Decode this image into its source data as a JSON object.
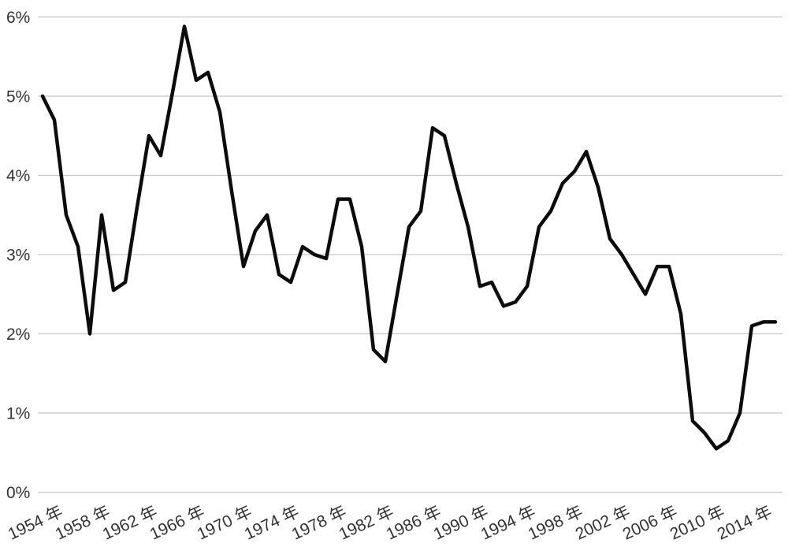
{
  "chart_data": {
    "type": "line",
    "title": "",
    "xlabel": "",
    "ylabel": "",
    "grid": true,
    "legend_position": "none",
    "ylim": [
      0,
      6
    ],
    "y_tick_labels": [
      "0%",
      "1%",
      "2%",
      "3%",
      "4%",
      "5%",
      "6%"
    ],
    "x_tick_years": [
      1954,
      1958,
      1962,
      1966,
      1970,
      1974,
      1978,
      1982,
      1986,
      1990,
      1994,
      1998,
      2002,
      2006,
      2010,
      2014
    ],
    "x_tick_labels": [
      "1954 年",
      "1958 年",
      "1962 年",
      "1966 年",
      "1970 年",
      "1974 年",
      "1978 年",
      "1982 年",
      "1986 年",
      "1990 年",
      "1994 年",
      "1998 年",
      "2002 年",
      "2006 年",
      "2010 年",
      "2014 年"
    ],
    "years": [
      1954,
      1955,
      1956,
      1957,
      1958,
      1959,
      1960,
      1961,
      1962,
      1963,
      1964,
      1965,
      1966,
      1967,
      1968,
      1969,
      1970,
      1971,
      1972,
      1973,
      1974,
      1975,
      1976,
      1977,
      1978,
      1979,
      1980,
      1981,
      1982,
      1983,
      1984,
      1985,
      1986,
      1987,
      1988,
      1989,
      1990,
      1991,
      1992,
      1993,
      1994,
      1995,
      1996,
      1997,
      1998,
      1999,
      2000,
      2001,
      2002,
      2003,
      2004,
      2005,
      2006,
      2007,
      2008,
      2009,
      2010,
      2011,
      2012,
      2013,
      2014,
      2015,
      2016
    ],
    "values": [
      5.0,
      4.7,
      3.5,
      3.1,
      2.0,
      3.5,
      2.55,
      2.65,
      3.6,
      4.5,
      4.25,
      5.05,
      5.88,
      5.2,
      5.3,
      4.8,
      3.8,
      2.85,
      3.3,
      3.5,
      2.75,
      2.65,
      3.1,
      3.0,
      2.95,
      3.7,
      3.7,
      3.1,
      1.8,
      1.65,
      2.5,
      3.35,
      3.55,
      4.6,
      4.5,
      3.9,
      3.35,
      2.6,
      2.65,
      2.35,
      2.4,
      2.6,
      3.35,
      3.55,
      3.9,
      4.05,
      4.3,
      3.85,
      3.2,
      3.0,
      2.75,
      2.5,
      2.85,
      2.85,
      2.25,
      0.9,
      0.75,
      0.55,
      0.65,
      1.0,
      2.1,
      2.15,
      2.15
    ],
    "colors": {
      "line": "#0c0c0c",
      "gridline": "#c7c7c7",
      "tick_text": "#333333",
      "background": "#ffffff"
    }
  }
}
